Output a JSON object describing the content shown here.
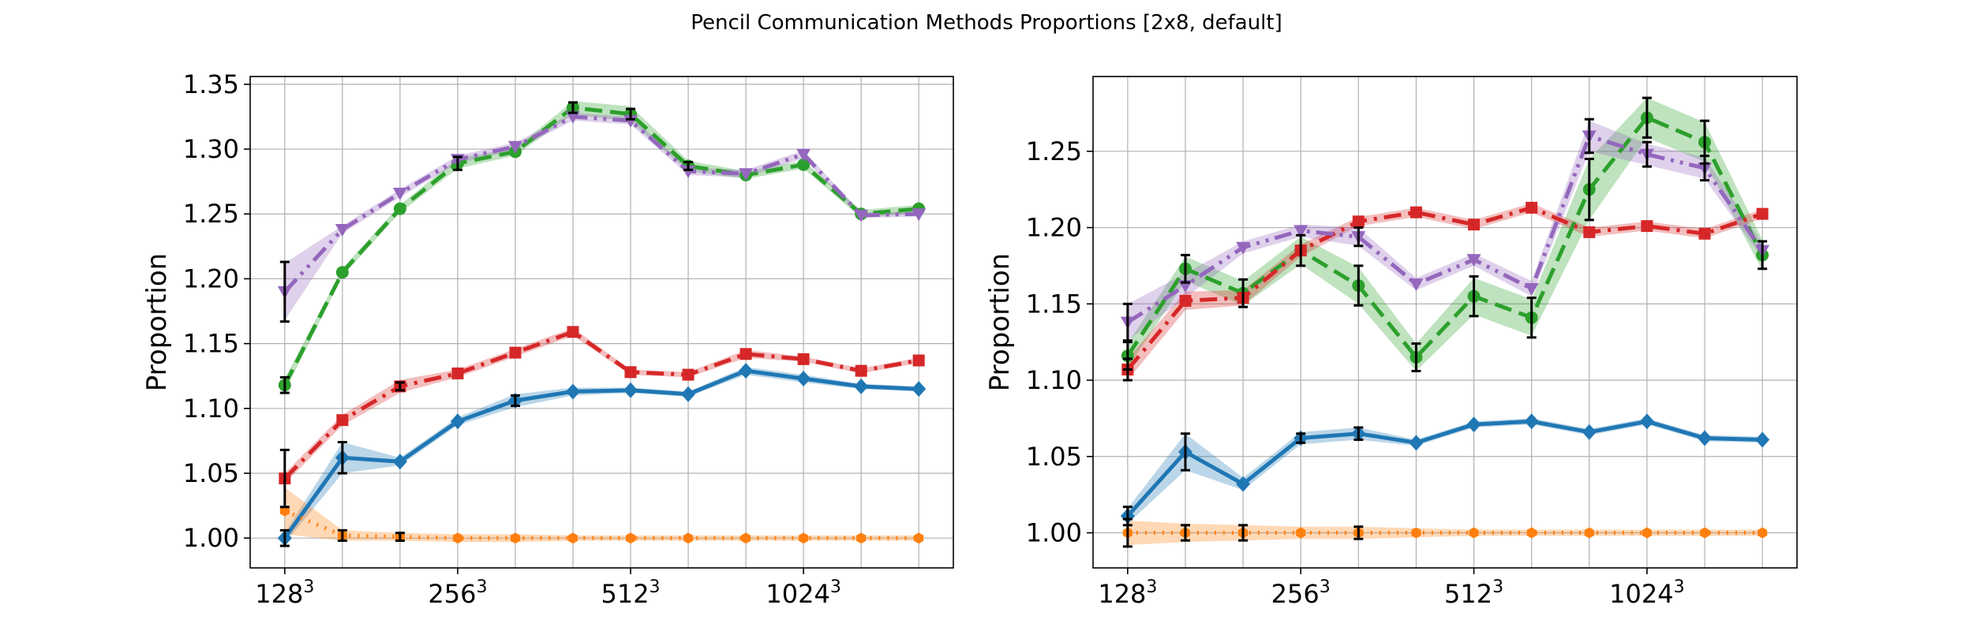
{
  "figure_title": "Pencil Communication Methods Proportions [2x8, default]",
  "colors": {
    "blue": "#1f77b4",
    "orange": "#ff7f0e",
    "green": "#2ca02c",
    "red": "#d62728",
    "purple": "#9467bd"
  },
  "chart_data": [
    {
      "type": "line",
      "ylabel": "Proportion",
      "xlabel": "",
      "grid": true,
      "xticks": [
        {
          "x": 0,
          "label": "128",
          "exp": "3"
        },
        {
          "x": 3,
          "label": "256",
          "exp": "3"
        },
        {
          "x": 6,
          "label": "512",
          "exp": "3"
        },
        {
          "x": 9,
          "label": "1024",
          "exp": "3"
        }
      ],
      "yticks": [
        "1.00",
        "1.05",
        "1.10",
        "1.15",
        "1.20",
        "1.25",
        "1.30",
        "1.35"
      ],
      "ylim": [
        0.977,
        1.356
      ],
      "xlim": [
        -0.6,
        11.6
      ],
      "x": [
        0,
        1,
        2,
        3,
        4,
        5,
        6,
        7,
        8,
        9,
        10,
        11
      ],
      "series": [
        {
          "color": "#1f77b4",
          "marker": "diamond",
          "dash": "solid",
          "values": [
            1.0,
            1.062,
            1.059,
            1.09,
            1.106,
            1.113,
            1.114,
            1.111,
            1.129,
            1.123,
            1.117,
            1.115
          ],
          "band": [
            0.004,
            0.012,
            0.003,
            0.003,
            0.005,
            0.003,
            0.002,
            0.002,
            0.003,
            0.003,
            0.002,
            0.002
          ],
          "err": [
            0.006,
            0.012,
            0.0,
            0.0,
            0.004,
            0.0,
            0.0,
            0.0,
            0.0,
            0.0,
            0.0,
            0.0
          ]
        },
        {
          "color": "#ff7f0e",
          "marker": "hexagon",
          "dash": "dot",
          "values": [
            1.021,
            1.002,
            1.001,
            1.0,
            1.0,
            1.0,
            1.0,
            1.0,
            1.0,
            1.0,
            1.0,
            1.0
          ],
          "band": [
            0.018,
            0.004,
            0.003,
            0.003,
            0.003,
            0.002,
            0.002,
            0.002,
            0.002,
            0.002,
            0.002,
            0.002
          ],
          "err": [
            0.0,
            0.004,
            0.003,
            0.0,
            0.0,
            0.0,
            0.0,
            0.0,
            0.0,
            0.0,
            0.0,
            0.0
          ]
        },
        {
          "color": "#2ca02c",
          "marker": "circle",
          "dash": "dash",
          "values": [
            1.118,
            1.205,
            1.254,
            1.289,
            1.298,
            1.332,
            1.327,
            1.287,
            1.28,
            1.288,
            1.25,
            1.254
          ],
          "band": [
            0.005,
            0.003,
            0.003,
            0.004,
            0.003,
            0.005,
            0.006,
            0.004,
            0.003,
            0.003,
            0.003,
            0.003
          ],
          "err": [
            0.006,
            0.0,
            0.0,
            0.005,
            0.0,
            0.004,
            0.004,
            0.003,
            0.0,
            0.0,
            0.0,
            0.0
          ]
        },
        {
          "color": "#d62728",
          "marker": "square",
          "dash": "dashdot",
          "values": [
            1.046,
            1.091,
            1.117,
            1.127,
            1.143,
            1.159,
            1.128,
            1.126,
            1.142,
            1.138,
            1.129,
            1.137
          ],
          "band": [
            0.004,
            0.004,
            0.005,
            0.003,
            0.003,
            0.003,
            0.002,
            0.002,
            0.003,
            0.002,
            0.002,
            0.002
          ],
          "err": [
            0.022,
            0.0,
            0.003,
            0.0,
            0.0,
            0.0,
            0.0,
            0.0,
            0.0,
            0.0,
            0.0,
            0.0
          ]
        },
        {
          "color": "#9467bd",
          "marker": "triangle-down",
          "dash": "dashdotdot",
          "values": [
            1.19,
            1.238,
            1.266,
            1.292,
            1.302,
            1.325,
            1.322,
            1.283,
            1.281,
            1.296,
            1.249,
            1.25
          ],
          "band": [
            0.022,
            0.003,
            0.003,
            0.003,
            0.003,
            0.003,
            0.003,
            0.003,
            0.003,
            0.003,
            0.002,
            0.002
          ],
          "err": [
            0.023,
            0.0,
            0.0,
            0.0,
            0.0,
            0.0,
            0.0,
            0.0,
            0.0,
            0.0,
            0.0,
            0.0
          ]
        }
      ]
    },
    {
      "type": "line",
      "ylabel": "Proportion",
      "xlabel": "",
      "grid": true,
      "xticks": [
        {
          "x": 0,
          "label": "128",
          "exp": "3"
        },
        {
          "x": 3,
          "label": "256",
          "exp": "3"
        },
        {
          "x": 6,
          "label": "512",
          "exp": "3"
        },
        {
          "x": 9,
          "label": "1024",
          "exp": "3"
        }
      ],
      "yticks": [
        "1.00",
        "1.05",
        "1.10",
        "1.15",
        "1.20",
        "1.25"
      ],
      "ylim": [
        0.977,
        1.299
      ],
      "xlim": [
        -0.6,
        11.6
      ],
      "x": [
        0,
        1,
        2,
        3,
        4,
        5,
        6,
        7,
        8,
        9,
        10,
        11
      ],
      "series": [
        {
          "color": "#1f77b4",
          "marker": "diamond",
          "dash": "solid",
          "values": [
            1.011,
            1.053,
            1.032,
            1.062,
            1.065,
            1.059,
            1.071,
            1.073,
            1.066,
            1.073,
            1.062,
            1.061
          ],
          "band": [
            0.005,
            0.012,
            0.004,
            0.004,
            0.004,
            0.002,
            0.002,
            0.002,
            0.002,
            0.002,
            0.002,
            0.002
          ],
          "err": [
            0.006,
            0.012,
            0.0,
            0.003,
            0.004,
            0.0,
            0.0,
            0.0,
            0.0,
            0.0,
            0.0,
            0.0
          ]
        },
        {
          "color": "#ff7f0e",
          "marker": "hexagon",
          "dash": "dot",
          "values": [
            1.0,
            1.0,
            1.0,
            1.0,
            1.0,
            1.0,
            1.0,
            1.0,
            1.0,
            1.0,
            1.0,
            1.0
          ],
          "band": [
            0.008,
            0.006,
            0.005,
            0.004,
            0.004,
            0.003,
            0.002,
            0.002,
            0.002,
            0.002,
            0.002,
            0.002
          ],
          "err": [
            0.009,
            0.005,
            0.005,
            0.0,
            0.004,
            0.0,
            0.0,
            0.0,
            0.0,
            0.0,
            0.0,
            0.0
          ]
        },
        {
          "color": "#2ca02c",
          "marker": "circle",
          "dash": "dash",
          "values": [
            1.116,
            1.173,
            1.157,
            1.185,
            1.162,
            1.115,
            1.155,
            1.141,
            1.225,
            1.272,
            1.256,
            1.182
          ],
          "band": [
            0.008,
            0.008,
            0.008,
            0.009,
            0.012,
            0.009,
            0.012,
            0.012,
            0.02,
            0.013,
            0.013,
            0.01
          ],
          "err": [
            0.009,
            0.009,
            0.009,
            0.01,
            0.013,
            0.009,
            0.013,
            0.013,
            0.02,
            0.013,
            0.014,
            0.009
          ]
        },
        {
          "color": "#d62728",
          "marker": "square",
          "dash": "dashdot",
          "values": [
            1.107,
            1.152,
            1.154,
            1.185,
            1.204,
            1.21,
            1.202,
            1.213,
            1.197,
            1.201,
            1.196,
            1.209
          ],
          "band": [
            0.007,
            0.006,
            0.005,
            0.004,
            0.003,
            0.003,
            0.003,
            0.003,
            0.003,
            0.003,
            0.003,
            0.003
          ],
          "err": [
            0.007,
            0.0,
            0.0,
            0.0,
            0.0,
            0.0,
            0.0,
            0.0,
            0.0,
            0.0,
            0.0,
            0.0
          ]
        },
        {
          "color": "#9467bd",
          "marker": "triangle-down",
          "dash": "dashdotdot",
          "values": [
            1.138,
            1.162,
            1.187,
            1.198,
            1.194,
            1.163,
            1.179,
            1.16,
            1.26,
            1.248,
            1.239,
            1.185
          ],
          "band": [
            0.012,
            0.008,
            0.004,
            0.004,
            0.006,
            0.004,
            0.004,
            0.005,
            0.01,
            0.007,
            0.007,
            0.005
          ],
          "err": [
            0.012,
            0.0,
            0.0,
            0.0,
            0.006,
            0.0,
            0.0,
            0.0,
            0.011,
            0.008,
            0.008,
            0.0
          ]
        }
      ]
    }
  ]
}
